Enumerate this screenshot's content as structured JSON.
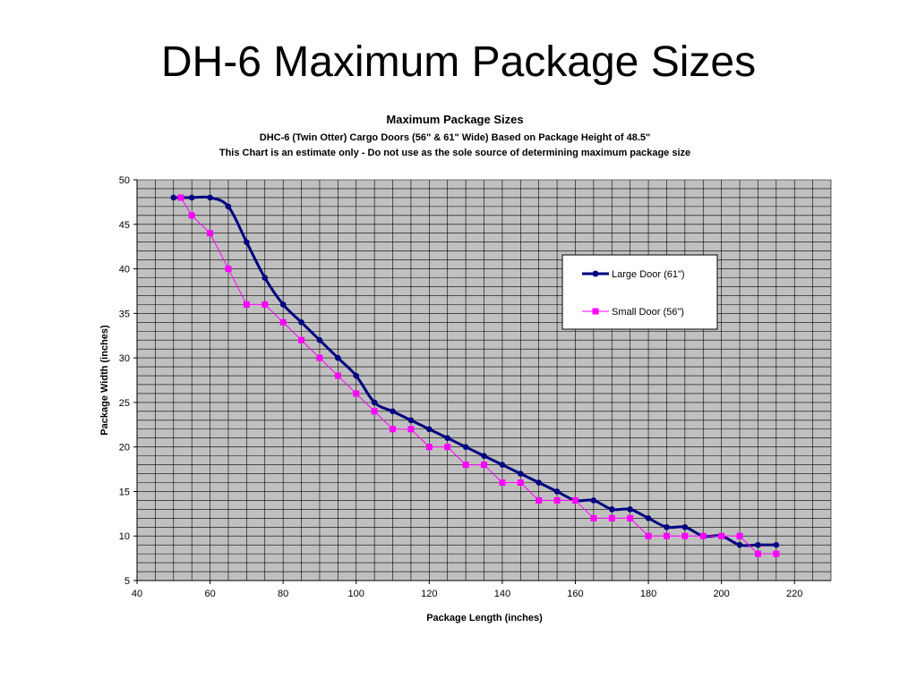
{
  "slide": {
    "title": "DH-6 Maximum Package Sizes"
  },
  "chart_data": {
    "type": "line",
    "title": "Maximum Package Sizes",
    "subtitles": [
      "DHC-6 (Twin Otter) Cargo Doors (56\" & 61\" Wide) Based on Package Height of 48.5\"",
      "This Chart is an estimate only - Do not use as the sole source of determining maximum package size"
    ],
    "xlabel": "Package Length (inches)",
    "ylabel": "Package Width (inches)",
    "xlim": [
      40,
      230
    ],
    "ylim": [
      5,
      50
    ],
    "xticks": [
      40,
      60,
      80,
      100,
      120,
      140,
      160,
      180,
      200,
      220
    ],
    "yticks": [
      5,
      10,
      15,
      20,
      25,
      30,
      35,
      40,
      45,
      50
    ],
    "grid": true,
    "plot_background": "#c0c0c0",
    "legend_position": "upper-right inside plot",
    "series": [
      {
        "name": "Large Door (61\")",
        "color": "#000080",
        "marker": "circle",
        "smooth": true,
        "points": [
          [
            50,
            48
          ],
          [
            55,
            48
          ],
          [
            60,
            48
          ],
          [
            65,
            47
          ],
          [
            70,
            43
          ],
          [
            75,
            39
          ],
          [
            80,
            36
          ],
          [
            85,
            34
          ],
          [
            90,
            32
          ],
          [
            95,
            30
          ],
          [
            100,
            28
          ],
          [
            105,
            25
          ],
          [
            110,
            24
          ],
          [
            115,
            23
          ],
          [
            120,
            22
          ],
          [
            125,
            21
          ],
          [
            130,
            20
          ],
          [
            135,
            19
          ],
          [
            140,
            18
          ],
          [
            145,
            17
          ],
          [
            150,
            16
          ],
          [
            155,
            15
          ],
          [
            160,
            14
          ],
          [
            165,
            14
          ],
          [
            170,
            13
          ],
          [
            175,
            13
          ],
          [
            180,
            12
          ],
          [
            185,
            11
          ],
          [
            190,
            11
          ],
          [
            195,
            10
          ],
          [
            200,
            10
          ],
          [
            205,
            9
          ],
          [
            210,
            9
          ],
          [
            215,
            9
          ]
        ]
      },
      {
        "name": "Small Door (56\")",
        "color": "#ff00ff",
        "marker": "square",
        "smooth": false,
        "points": [
          [
            52,
            48
          ],
          [
            55,
            46
          ],
          [
            60,
            44
          ],
          [
            65,
            40
          ],
          [
            70,
            36
          ],
          [
            75,
            36
          ],
          [
            80,
            34
          ],
          [
            85,
            32
          ],
          [
            90,
            30
          ],
          [
            95,
            28
          ],
          [
            100,
            26
          ],
          [
            105,
            24
          ],
          [
            110,
            22
          ],
          [
            115,
            22
          ],
          [
            120,
            20
          ],
          [
            125,
            20
          ],
          [
            130,
            18
          ],
          [
            135,
            18
          ],
          [
            140,
            16
          ],
          [
            145,
            16
          ],
          [
            150,
            14
          ],
          [
            155,
            14
          ],
          [
            160,
            14
          ],
          [
            165,
            12
          ],
          [
            170,
            12
          ],
          [
            175,
            12
          ],
          [
            180,
            10
          ],
          [
            185,
            10
          ],
          [
            190,
            10
          ],
          [
            195,
            10
          ],
          [
            200,
            10
          ],
          [
            205,
            10
          ],
          [
            210,
            8
          ],
          [
            215,
            8
          ]
        ]
      }
    ]
  }
}
